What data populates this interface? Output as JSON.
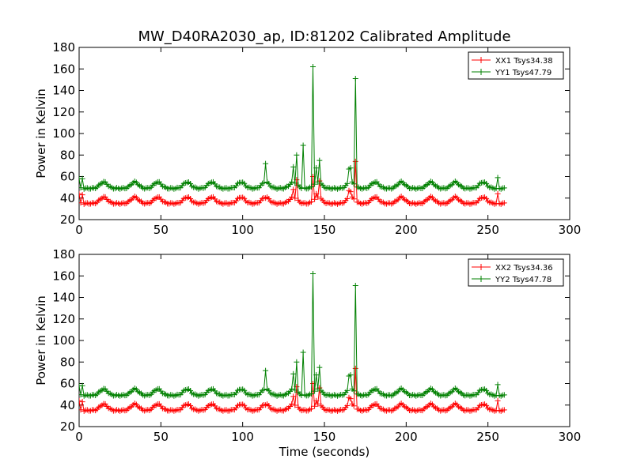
{
  "chart_data": [
    {
      "type": "line",
      "title": "MW_D40RA2030_ap, ID:81202 Calibrated Amplitude",
      "xlabel": "",
      "ylabel": "Power in Kelvin",
      "xlim": [
        0,
        300
      ],
      "ylim": [
        20,
        180
      ],
      "xticks": [
        "0",
        "50",
        "100",
        "150",
        "200",
        "250",
        "300"
      ],
      "yticks": [
        "20",
        "40",
        "60",
        "80",
        "100",
        "120",
        "140",
        "160",
        "180"
      ],
      "legend_position": "top-right",
      "grid": false,
      "series": [
        {
          "name": "XX1 Tsys34.38",
          "color": "#ff0000",
          "baseline": 35,
          "bump_peak": 41,
          "spikes": [
            [
              0,
              44
            ],
            [
              2,
              43
            ],
            [
              114,
              40
            ],
            [
              131,
              48
            ],
            [
              133,
              57
            ],
            [
              143,
              60
            ],
            [
              145,
              44
            ],
            [
              147,
              56
            ],
            [
              165,
              47
            ],
            [
              166,
              46
            ],
            [
              169,
              74
            ],
            [
              256,
              44
            ]
          ]
        },
        {
          "name": "YY1 Tsys47.79",
          "color": "#008000",
          "baseline": 49,
          "bump_peak": 55,
          "spikes": [
            [
              0,
              58
            ],
            [
              2,
              58
            ],
            [
              114,
              72
            ],
            [
              131,
              69
            ],
            [
              133,
              80
            ],
            [
              137,
              89
            ],
            [
              143,
              162
            ],
            [
              145,
              68
            ],
            [
              147,
              75
            ],
            [
              165,
              67
            ],
            [
              166,
              68
            ],
            [
              169,
              151
            ],
            [
              256,
              59
            ]
          ]
        }
      ]
    },
    {
      "type": "line",
      "title": "",
      "xlabel": "Time (seconds)",
      "ylabel": "Power in Kelvin",
      "xlim": [
        0,
        300
      ],
      "ylim": [
        20,
        180
      ],
      "xticks": [
        "0",
        "50",
        "100",
        "150",
        "200",
        "250",
        "300"
      ],
      "yticks": [
        "20",
        "40",
        "60",
        "80",
        "100",
        "120",
        "140",
        "160",
        "180"
      ],
      "legend_position": "top-right",
      "grid": false,
      "series": [
        {
          "name": "XX2 Tsys34.36",
          "color": "#ff0000",
          "baseline": 35,
          "bump_peak": 41,
          "spikes": [
            [
              0,
              44
            ],
            [
              2,
              43
            ],
            [
              114,
              40
            ],
            [
              131,
              48
            ],
            [
              133,
              57
            ],
            [
              143,
              60
            ],
            [
              145,
              44
            ],
            [
              147,
              56
            ],
            [
              165,
              47
            ],
            [
              166,
              46
            ],
            [
              169,
              74
            ],
            [
              256,
              44
            ]
          ]
        },
        {
          "name": "YY2 Tsys47.78",
          "color": "#008000",
          "baseline": 49,
          "bump_peak": 55,
          "spikes": [
            [
              0,
              58
            ],
            [
              2,
              58
            ],
            [
              114,
              72
            ],
            [
              131,
              69
            ],
            [
              133,
              80
            ],
            [
              137,
              89
            ],
            [
              143,
              162
            ],
            [
              145,
              68
            ],
            [
              147,
              75
            ],
            [
              165,
              67
            ],
            [
              166,
              68
            ],
            [
              169,
              151
            ],
            [
              256,
              59
            ]
          ]
        }
      ]
    }
  ]
}
